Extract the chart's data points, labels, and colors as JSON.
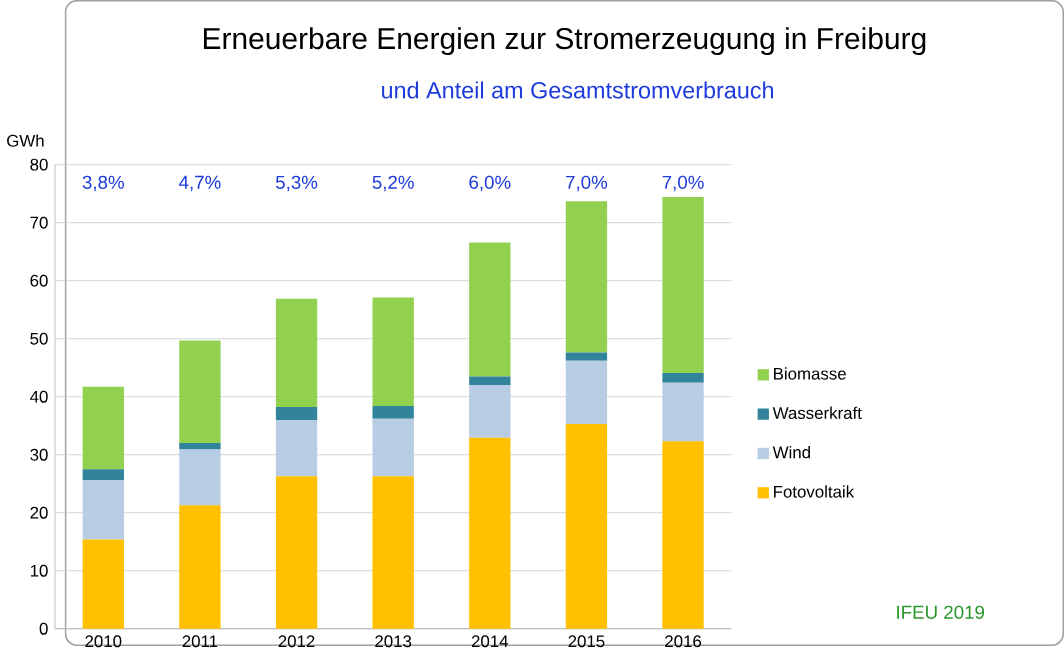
{
  "chart_data": {
    "type": "bar",
    "stacked": true,
    "title": "Erneuerbare Energien zur Stromerzeugung in Freiburg",
    "subtitle": "und Anteil am Gesamtstromverbrauch",
    "ylabel": "GWh",
    "categories": [
      "2010",
      "2011",
      "2012",
      "2013",
      "2014",
      "2015",
      "2016"
    ],
    "series": [
      {
        "name": "Fotovoltaik",
        "color": "#ffc000",
        "values": [
          15.4,
          21.3,
          26.3,
          26.3,
          32.9,
          35.3,
          32.3
        ]
      },
      {
        "name": "Wind",
        "color": "#b8cce4",
        "values": [
          10.2,
          9.6,
          9.7,
          9.9,
          9.1,
          10.9,
          10.1
        ]
      },
      {
        "name": "Wasserkraft",
        "color": "#31849b",
        "values": [
          1.9,
          1.1,
          2.2,
          2.2,
          1.5,
          1.4,
          1.7
        ]
      },
      {
        "name": "Biomasse",
        "color": "#92d050",
        "values": [
          14.2,
          17.7,
          18.7,
          18.7,
          23.1,
          26.1,
          30.3
        ]
      }
    ],
    "ylim": [
      0,
      80
    ],
    "yticks": [
      0,
      10,
      20,
      30,
      40,
      50,
      60,
      70,
      80
    ],
    "grid": "y",
    "legend": "right",
    "annotations": [
      "3,8%",
      "4,7%",
      "5,3%",
      "5,2%",
      "6,0%",
      "7,0%",
      "7,0%",
      "IFEU 2019"
    ]
  }
}
